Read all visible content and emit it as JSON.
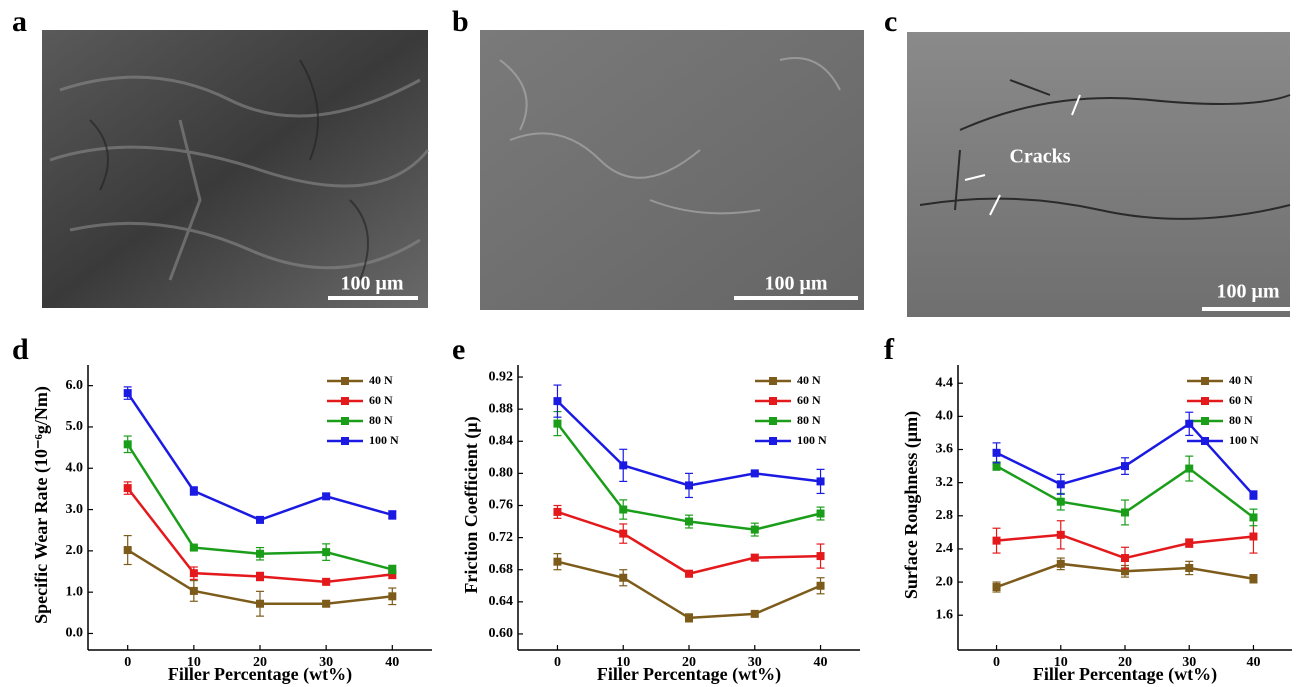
{
  "images": [
    {
      "panel": "a",
      "scale_bar": "100 μm"
    },
    {
      "panel": "b",
      "scale_bar": "100 μm"
    },
    {
      "panel": "c",
      "scale_bar": "100 μm",
      "annotation": "Cracks"
    }
  ],
  "chart_data": [
    {
      "type": "line",
      "panel": "d",
      "xlabel": "Filler Percentage (wt%)",
      "ylabel": "Specific Wear Rate (10⁻⁶g/Nm)",
      "x": [
        0,
        10,
        20,
        30,
        40
      ],
      "xlim": [
        -6,
        46
      ],
      "xticks": [
        0,
        10,
        20,
        30,
        40
      ],
      "ylim": [
        -0.4,
        6.5
      ],
      "yticks": [
        {
          "value": 0,
          "label": "0.0"
        },
        {
          "value": 1,
          "label": "1.0"
        },
        {
          "value": 2,
          "label": "2.0"
        },
        {
          "value": 3,
          "label": "3.0"
        },
        {
          "value": 4,
          "label": "4.0"
        },
        {
          "value": 5,
          "label": "5.0"
        },
        {
          "value": 6,
          "label": "6.0"
        }
      ],
      "legend": "upper right",
      "series": [
        {
          "name": "40 N",
          "color": "#7d5c1b",
          "values": [
            2.02,
            1.03,
            0.72,
            0.72,
            0.9
          ],
          "errors": [
            0.35,
            0.25,
            0.3,
            0.07,
            0.2
          ]
        },
        {
          "name": "60 N",
          "color": "#e3191c",
          "values": [
            3.52,
            1.46,
            1.38,
            1.25,
            1.43
          ],
          "errors": [
            0.15,
            0.15,
            0.1,
            0.05,
            0.1
          ]
        },
        {
          "name": "80 N",
          "color": "#1a9e1a",
          "values": [
            4.58,
            2.08,
            1.93,
            1.97,
            1.55
          ],
          "errors": [
            0.2,
            0.05,
            0.15,
            0.2,
            0.1
          ]
        },
        {
          "name": "100 N",
          "color": "#1a1ae3",
          "values": [
            5.82,
            3.45,
            2.75,
            3.32,
            2.87
          ],
          "errors": [
            0.15,
            0.1,
            0.05,
            0.05,
            0.1
          ]
        }
      ]
    },
    {
      "type": "line",
      "panel": "e",
      "xlabel": "Filler Percentage (wt%)",
      "ylabel": "Friction Coefficient (μ)",
      "x": [
        0,
        10,
        20,
        30,
        40
      ],
      "xlim": [
        -6,
        46
      ],
      "xticks": [
        0,
        10,
        20,
        30,
        40
      ],
      "ylim": [
        0.58,
        0.935
      ],
      "yticks": [
        {
          "value": 0.6,
          "label": "0.60"
        },
        0.64,
        0.68,
        0.72,
        0.76,
        {
          "value": 0.8,
          "label": "0.80"
        },
        0.84,
        0.88,
        0.92
      ],
      "legend": "upper right",
      "series": [
        {
          "name": "40 N",
          "color": "#7d5c1b",
          "values": [
            0.69,
            0.67,
            0.62,
            0.625,
            0.66
          ],
          "errors": [
            0.01,
            0.01,
            0.005,
            0.003,
            0.01
          ]
        },
        {
          "name": "60 N",
          "color": "#e3191c",
          "values": [
            0.752,
            0.725,
            0.675,
            0.695,
            0.697
          ],
          "errors": [
            0.008,
            0.012,
            0.004,
            0.004,
            0.015
          ]
        },
        {
          "name": "80 N",
          "color": "#1a9e1a",
          "values": [
            0.862,
            0.755,
            0.74,
            0.73,
            0.75
          ],
          "errors": [
            0.015,
            0.012,
            0.008,
            0.008,
            0.008
          ]
        },
        {
          "name": "100 N",
          "color": "#1a1ae3",
          "values": [
            0.89,
            0.81,
            0.785,
            0.8,
            0.79
          ],
          "errors": [
            0.02,
            0.02,
            0.015,
            0.002,
            0.015
          ]
        }
      ]
    },
    {
      "type": "line",
      "panel": "f",
      "xlabel": "Filler Percentage (wt%)",
      "ylabel": "Surface Roughness (μm)",
      "x": [
        0,
        10,
        20,
        30,
        40
      ],
      "xlim": [
        -6,
        46
      ],
      "xticks": [
        0,
        10,
        20,
        30,
        40
      ],
      "ylim": [
        1.18,
        4.62
      ],
      "yticks": [
        1.6,
        {
          "value": 2,
          "label": "2.0"
        },
        2.4,
        2.8,
        3.2,
        3.6,
        {
          "value": 4,
          "label": "4.0"
        },
        4.4
      ],
      "legend": "upper right",
      "series": [
        {
          "name": "40 N",
          "color": "#7d5c1b",
          "values": [
            1.94,
            2.22,
            2.13,
            2.17,
            2.04
          ],
          "errors": [
            0.06,
            0.07,
            0.07,
            0.08,
            0.05
          ]
        },
        {
          "name": "60 N",
          "color": "#e3191c",
          "values": [
            2.5,
            2.57,
            2.29,
            2.47,
            2.55
          ],
          "errors": [
            0.15,
            0.17,
            0.13,
            0.05,
            0.2
          ]
        },
        {
          "name": "80 N",
          "color": "#1a9e1a",
          "values": [
            3.4,
            2.97,
            2.84,
            3.37,
            2.78
          ],
          "errors": [
            0.05,
            0.1,
            0.15,
            0.15,
            0.1
          ]
        },
        {
          "name": "100 N",
          "color": "#1a1ae3",
          "values": [
            3.56,
            3.18,
            3.4,
            3.91,
            3.05
          ],
          "errors": [
            0.12,
            0.12,
            0.1,
            0.14,
            0.05
          ]
        }
      ]
    }
  ]
}
